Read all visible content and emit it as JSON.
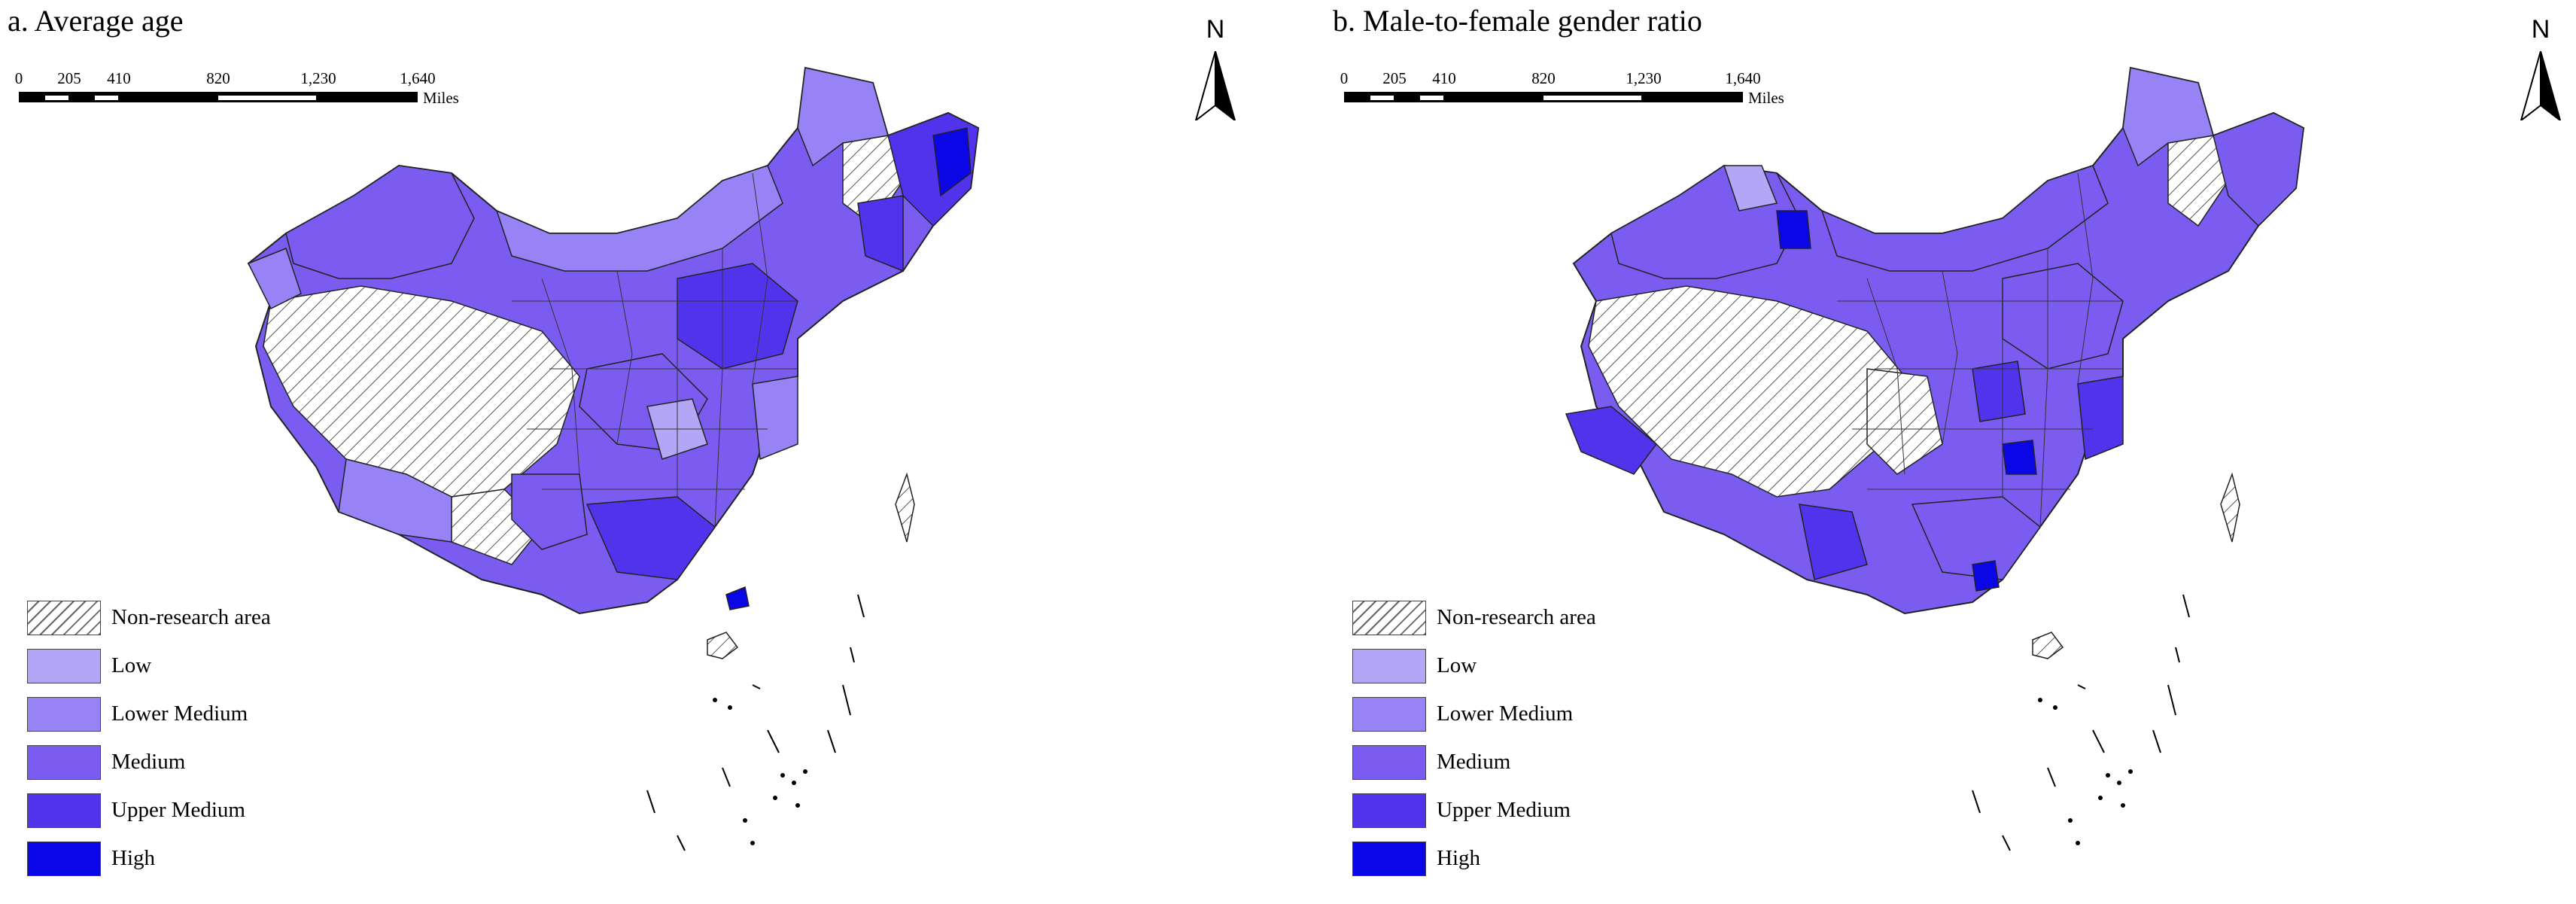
{
  "panels": [
    {
      "title": "a. Average age",
      "scale_ticks": [
        "0",
        "205",
        "410",
        "820",
        "1,230",
        "1,640"
      ],
      "scale_units": "Miles",
      "north_label": "N",
      "legend": [
        {
          "label": "Non-research area",
          "pattern": "hatch"
        },
        {
          "label": "Low",
          "color": "#b3a6f7"
        },
        {
          "label": "Lower Medium",
          "color": "#9783f5"
        },
        {
          "label": "Medium",
          "color": "#7a5df0"
        },
        {
          "label": "Upper Medium",
          "color": "#5233ec"
        },
        {
          "label": "High",
          "color": "#0a06e6"
        }
      ],
      "dominant_class": "Medium"
    },
    {
      "title": "b. Male-to-female gender ratio",
      "scale_ticks": [
        "0",
        "205",
        "410",
        "820",
        "1,230",
        "1,640"
      ],
      "scale_units": "Miles",
      "north_label": "N",
      "legend": [
        {
          "label": "Non-research area",
          "pattern": "hatch"
        },
        {
          "label": "Low",
          "color": "#b3a6f7"
        },
        {
          "label": "Lower Medium",
          "color": "#9783f5"
        },
        {
          "label": "Medium",
          "color": "#7a5df0"
        },
        {
          "label": "Upper Medium",
          "color": "#5233ec"
        },
        {
          "label": "High",
          "color": "#0a06e6"
        }
      ],
      "dominant_class": "Medium"
    }
  ]
}
